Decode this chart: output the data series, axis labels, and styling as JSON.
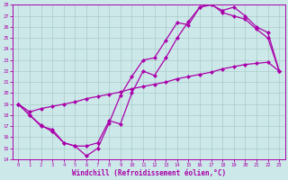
{
  "xlabel": "Windchill (Refroidissement éolien,°C)",
  "xlim": [
    -0.5,
    23.5
  ],
  "ylim": [
    14,
    28
  ],
  "yticks": [
    14,
    15,
    16,
    17,
    18,
    19,
    20,
    21,
    22,
    23,
    24,
    25,
    26,
    27,
    28
  ],
  "xticks": [
    0,
    1,
    2,
    3,
    4,
    5,
    6,
    7,
    8,
    9,
    10,
    11,
    12,
    13,
    14,
    15,
    16,
    17,
    18,
    19,
    20,
    21,
    22,
    23
  ],
  "bg_color": "#cce8e8",
  "grid_color": "#aacccc",
  "line_color": "#aa00aa",
  "line1_x": [
    0,
    1,
    2,
    3,
    4,
    5,
    6,
    7,
    8,
    9,
    10,
    11,
    12,
    13,
    14,
    15,
    16,
    17,
    18,
    19,
    20,
    21,
    22,
    23
  ],
  "line1_y": [
    19.0,
    18.0,
    17.0,
    16.7,
    15.5,
    15.2,
    14.3,
    15.0,
    17.3,
    19.8,
    21.5,
    23.0,
    23.2,
    24.8,
    26.4,
    26.2,
    27.8,
    28.1,
    27.3,
    27.0,
    26.7,
    25.8,
    25.0,
    22.0
  ],
  "line2_x": [
    0,
    1,
    2,
    3,
    4,
    5,
    6,
    7,
    8,
    9,
    10,
    11,
    12,
    13,
    14,
    15,
    16,
    17,
    18,
    19,
    20,
    21,
    22,
    23
  ],
  "line2_y": [
    19.0,
    18.0,
    17.1,
    16.5,
    15.5,
    15.2,
    15.2,
    15.5,
    17.5,
    17.2,
    20.0,
    22.0,
    21.6,
    23.2,
    25.0,
    26.5,
    27.8,
    28.0,
    27.5,
    27.8,
    27.0,
    26.0,
    25.5,
    22.0
  ],
  "line3_x": [
    0,
    1,
    2,
    3,
    4,
    5,
    6,
    7,
    8,
    9,
    10,
    11,
    12,
    13,
    14,
    15,
    16,
    17,
    18,
    19,
    20,
    21,
    22,
    23
  ],
  "line3_y": [
    19.0,
    18.3,
    18.6,
    18.8,
    19.0,
    19.2,
    19.5,
    19.7,
    19.9,
    20.1,
    20.4,
    20.6,
    20.8,
    21.0,
    21.3,
    21.5,
    21.7,
    21.9,
    22.2,
    22.4,
    22.6,
    22.7,
    22.8,
    22.0
  ],
  "markersize": 2.5,
  "linewidth": 0.9
}
